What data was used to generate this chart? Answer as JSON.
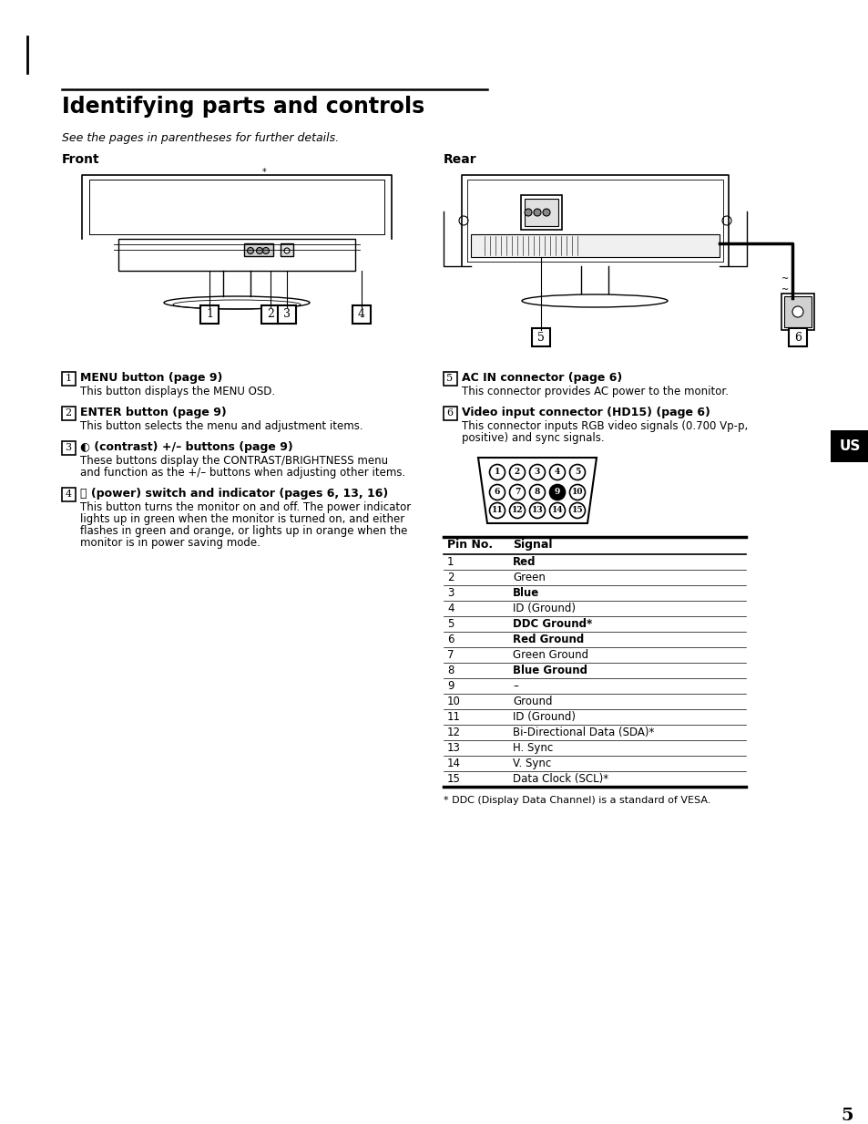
{
  "title": "Identifying parts and controls",
  "subtitle": "See the pages in parentheses for further details.",
  "front_label": "Front",
  "rear_label": "Rear",
  "left_items": [
    {
      "num": "1",
      "bold": "MENU button (page 9)",
      "normal": "This button displays the MENU OSD."
    },
    {
      "num": "2",
      "bold": "ENTER button (page 9)",
      "normal": "This button selects the menu and adjustment items."
    },
    {
      "num": "3",
      "bold": "◐ (contrast) +/– buttons (page 9)",
      "normal": "These buttons display the CONTRAST/BRIGHTNESS menu\nand function as the +/– buttons when adjusting other items."
    },
    {
      "num": "4",
      "bold": "⏻ (power) switch and indicator (pages 6, 13, 16)",
      "normal": "This button turns the monitor on and off. The power indicator\nlights up in green when the monitor is turned on, and either\nflashes in green and orange, or lights up in orange when the\nmonitor is in power saving mode."
    }
  ],
  "right_items": [
    {
      "num": "5",
      "bold": "AC IN connector (page 6)",
      "normal": "This connector provides AC power to the monitor."
    },
    {
      "num": "6",
      "bold": "Video input connector (HD15) (page 6)",
      "normal": "This connector inputs RGB video signals (0.700 Vp-p,\npositive) and sync signals."
    }
  ],
  "pin_rows": [
    [
      "1",
      "Red",
      true
    ],
    [
      "2",
      "Green",
      false
    ],
    [
      "3",
      "Blue",
      true
    ],
    [
      "4",
      "ID (Ground)",
      false
    ],
    [
      "5",
      "DDC Ground*",
      true
    ],
    [
      "6",
      "Red Ground",
      true
    ],
    [
      "7",
      "Green Ground",
      false
    ],
    [
      "8",
      "Blue Ground",
      true
    ],
    [
      "9",
      "–",
      false
    ],
    [
      "10",
      "Ground",
      false
    ],
    [
      "11",
      "ID (Ground)",
      false
    ],
    [
      "12",
      "Bi-Directional Data (SDA)*",
      false
    ],
    [
      "13",
      "H. Sync",
      false
    ],
    [
      "14",
      "V. Sync",
      false
    ],
    [
      "15",
      "Data Clock (SCL)*",
      false
    ]
  ],
  "footnote": "* DDC (Display Data Channel) is a standard of VESA.",
  "page_num": "5",
  "us_label": "US",
  "bg_color": "#ffffff",
  "text_color": "#000000",
  "table_header": [
    "Pin No.",
    "Signal"
  ]
}
